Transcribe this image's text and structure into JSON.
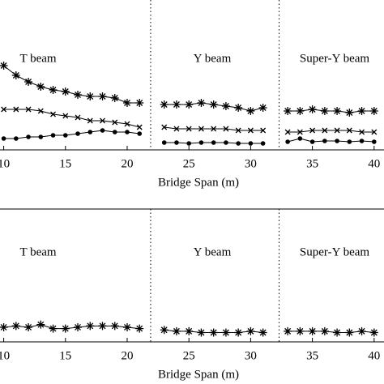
{
  "chart_data": [
    {
      "type": "line",
      "xlabel": "Bridge Span (m)",
      "annotations": [
        "T beam",
        "Y beam",
        "Super-Y beam"
      ],
      "dividers": [
        21.9,
        32.3
      ],
      "x": [
        10,
        11,
        12,
        13,
        14,
        15,
        16,
        17,
        18,
        19,
        20,
        21,
        22,
        23,
        24,
        25,
        26,
        27,
        28,
        29,
        30,
        31,
        32,
        33,
        34,
        35,
        36,
        37,
        38,
        39,
        40
      ],
      "xlim": [
        9.7,
        40.8
      ],
      "xticks": [
        10,
        15,
        20,
        25,
        30,
        35,
        40
      ],
      "ylim": [
        0,
        10
      ],
      "series": [
        {
          "color": "#000000",
          "marker": "star",
          "values": [
            5.2,
            4.6,
            4.2,
            3.9,
            3.7,
            3.6,
            3.4,
            3.3,
            3.3,
            3.2,
            2.9,
            2.9,
            null,
            2.8,
            2.8,
            2.8,
            2.9,
            2.8,
            2.7,
            2.6,
            2.4,
            2.6,
            null,
            2.4,
            2.4,
            2.5,
            2.4,
            2.4,
            2.3,
            2.4,
            2.4
          ]
        },
        {
          "color": "#000000",
          "marker": "x",
          "values": [
            2.5,
            2.5,
            2.5,
            2.4,
            2.2,
            2.1,
            2.0,
            1.8,
            1.8,
            1.7,
            1.6,
            1.4,
            null,
            1.4,
            1.3,
            1.3,
            1.3,
            1.3,
            1.3,
            1.2,
            1.2,
            1.2,
            null,
            1.1,
            1.1,
            1.2,
            1.2,
            1.2,
            1.2,
            1.1,
            1.1
          ]
        },
        {
          "color": "#000000",
          "marker": "dot",
          "values": [
            0.7,
            0.7,
            0.8,
            0.8,
            0.9,
            0.9,
            1.0,
            1.1,
            1.2,
            1.1,
            1.1,
            1.0,
            null,
            0.45,
            0.45,
            0.4,
            0.45,
            0.45,
            0.45,
            0.4,
            0.4,
            0.4,
            null,
            0.5,
            0.7,
            0.5,
            0.55,
            0.55,
            0.5,
            0.55,
            0.5
          ]
        }
      ]
    },
    {
      "type": "line",
      "xlabel": "Bridge Span (m)",
      "annotations": [
        "T beam",
        "Y beam",
        "Super-Y beam"
      ],
      "dividers": [
        21.9,
        32.3
      ],
      "x": [
        10,
        11,
        12,
        13,
        14,
        15,
        16,
        17,
        18,
        19,
        20,
        21,
        22,
        23,
        24,
        25,
        26,
        27,
        28,
        29,
        30,
        31,
        32,
        33,
        34,
        35,
        36,
        37,
        38,
        39,
        40
      ],
      "xlim": [
        9.7,
        40.8
      ],
      "xticks": [
        10,
        15,
        20,
        25,
        30,
        35,
        40
      ],
      "ylim": [
        0,
        10
      ],
      "series": [
        {
          "color": "#000000",
          "marker": "star",
          "values": [
            1.1,
            1.2,
            1.1,
            1.3,
            1.0,
            1.0,
            1.1,
            1.2,
            1.2,
            1.2,
            1.1,
            1.0,
            null,
            0.9,
            0.8,
            0.8,
            0.7,
            0.7,
            0.7,
            0.7,
            0.8,
            0.7,
            null,
            0.8,
            0.8,
            0.8,
            0.8,
            0.7,
            0.7,
            0.8,
            0.7
          ]
        }
      ]
    }
  ]
}
